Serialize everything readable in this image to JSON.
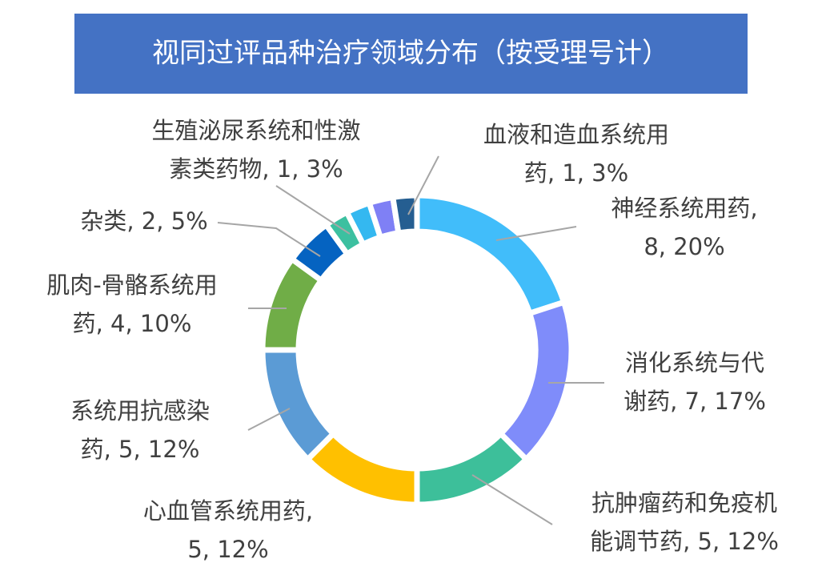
{
  "chart_data": {
    "type": "donut",
    "title": "视同过评品种治疗领域分布（按受理号计）",
    "values": [
      8,
      7,
      5,
      5,
      5,
      4,
      2,
      1,
      1,
      1,
      1
    ],
    "data_labels": [
      [
        "神经系统用药,",
        "8, 20%"
      ],
      [
        "消化系统与代",
        "谢药, 7, 17%"
      ],
      [
        "抗肿瘤药和免疫机",
        "能调节药, 5, 12%"
      ],
      [
        "心血管系统用药,",
        "5, 12%"
      ],
      [
        "系统用抗感染",
        "药, 5, 12%"
      ],
      [
        "肌肉-骨骼系统用",
        "药, 4, 10%"
      ],
      [
        "杂类, 2, 5%"
      ],
      [
        "生殖泌尿系统和性激",
        "素类药物, 1, 3%"
      ],
      null,
      null,
      [
        "血液和造血系统用",
        "药, 1, 3%"
      ]
    ],
    "colors": [
      "#41bdfa",
      "#7f8cfa",
      "#3dbf9a",
      "#ffc000",
      "#5b9bd5",
      "#70ad47",
      "#0563c1",
      "#3cc0a0",
      "#34b8f0",
      "#7f80f5",
      "#255e91"
    ]
  }
}
